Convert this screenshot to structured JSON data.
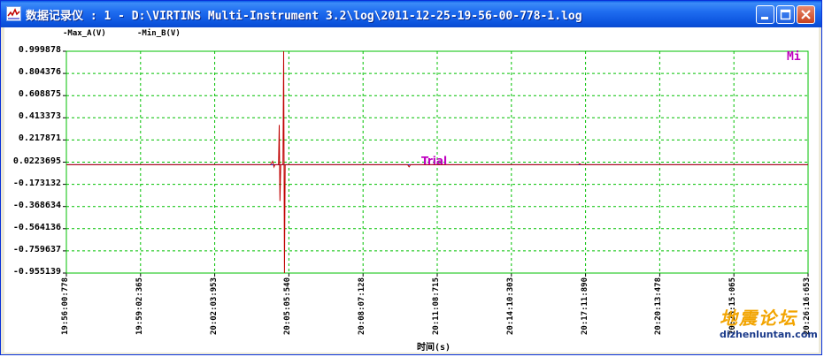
{
  "window": {
    "title": "数据记录仪 : 1 - D:\\VIRTINS Multi-Instrument 3.2\\log\\2011-12-25-19-56-00-778-1.log",
    "icon": "chart-icon",
    "controls": [
      "minimize-icon",
      "maximize-icon",
      "close-icon"
    ]
  },
  "legend": [
    {
      "label": "-Max_A(V)",
      "color": "#0000c0"
    },
    {
      "label": "-Min_B(V)",
      "color": "#c00000"
    }
  ],
  "plot_labels": {
    "trial": "Trial",
    "mi": "Mi"
  },
  "watermark": {
    "cn": "地震论坛",
    "url": "dizhenluntan.com"
  },
  "colors": {
    "border": "#00c000",
    "grid": "#00c000",
    "signal": "#c00000",
    "titlebar": "#0a5be8"
  },
  "chart_data": {
    "type": "line",
    "xlabel": "时间(s)",
    "ylabel": "",
    "ylim": [
      -0.955139,
      0.999878
    ],
    "yticks": [
      "0.999878",
      "0.804376",
      "0.608875",
      "0.413373",
      "0.217871",
      "0.0223695",
      "-0.173132",
      "-0.368634",
      "-0.564136",
      "-0.759637",
      "-0.955139"
    ],
    "xticks": [
      "19:56:00:778",
      "19:59:02:365",
      "20:02:03:953",
      "20:05:05:540",
      "20:08:07:128",
      "20:11:08:715",
      "20:14:10:303",
      "20:17:11:890",
      "20:20:13:478",
      "20:23:15:065",
      "20:26:16:653"
    ],
    "grid": true,
    "series": [
      {
        "name": "Max_A(V)",
        "color": "#0000c0",
        "values": [
          [
            0,
            0.0
          ],
          [
            10,
            0.0
          ]
        ]
      },
      {
        "name": "Min_B(V)",
        "color": "#c00000",
        "values": [
          [
            0,
            0.0
          ],
          [
            2.75,
            0.0
          ],
          [
            2.78,
            0.03
          ],
          [
            2.8,
            -0.02
          ],
          [
            2.81,
            0.0
          ],
          [
            2.82,
            0.0
          ],
          [
            2.86,
            0.0
          ],
          [
            2.87,
            0.35
          ],
          [
            2.88,
            -0.32
          ],
          [
            2.89,
            0.0
          ],
          [
            2.92,
            0.0
          ],
          [
            2.93,
            0.999878
          ],
          [
            2.94,
            -0.955139
          ],
          [
            2.95,
            0.0
          ],
          [
            4.6,
            0.0
          ],
          [
            4.62,
            -0.02
          ],
          [
            4.64,
            0.0
          ],
          [
            6.9,
            0.0
          ],
          [
            6.92,
            0.01
          ],
          [
            6.94,
            0.0
          ],
          [
            10,
            0.0
          ]
        ]
      }
    ]
  }
}
